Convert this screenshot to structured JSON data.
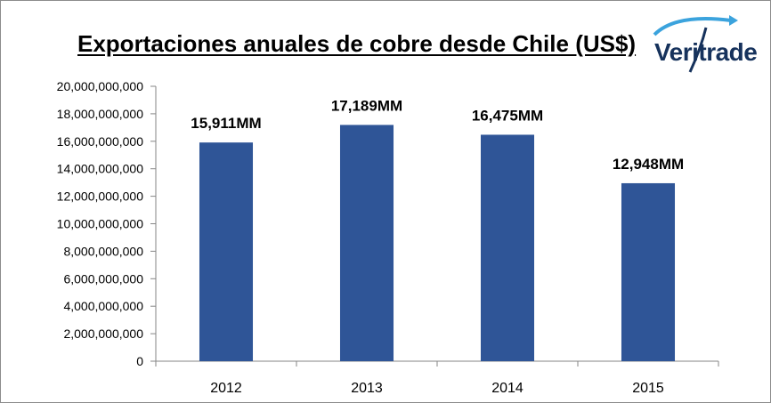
{
  "header": {
    "title": "Exportaciones anuales de cobre desde Chile (US$)"
  },
  "logo": {
    "text": "Veritrade",
    "color": "#16325c",
    "accent": "#3ba3dd"
  },
  "chart_data": {
    "type": "bar",
    "title": "Exportaciones anuales de cobre desde Chile (US$)",
    "categories": [
      "2012",
      "2013",
      "2014",
      "2015"
    ],
    "values": [
      15911000000,
      17189000000,
      16475000000,
      12948000000
    ],
    "data_labels": [
      "15,911MM",
      "17,189MM",
      "16,475MM",
      "12,948MM"
    ],
    "xlabel": "",
    "ylabel": "",
    "ylim": [
      0,
      20000000000
    ],
    "y_ticks": [
      "0",
      "2,000,000,000",
      "4,000,000,000",
      "6,000,000,000",
      "8,000,000,000",
      "10,000,000,000",
      "12,000,000,000",
      "14,000,000,000",
      "16,000,000,000",
      "18,000,000,000",
      "20,000,000,000"
    ],
    "grid": false,
    "legend": "none",
    "bar_color": "#2f5597"
  }
}
